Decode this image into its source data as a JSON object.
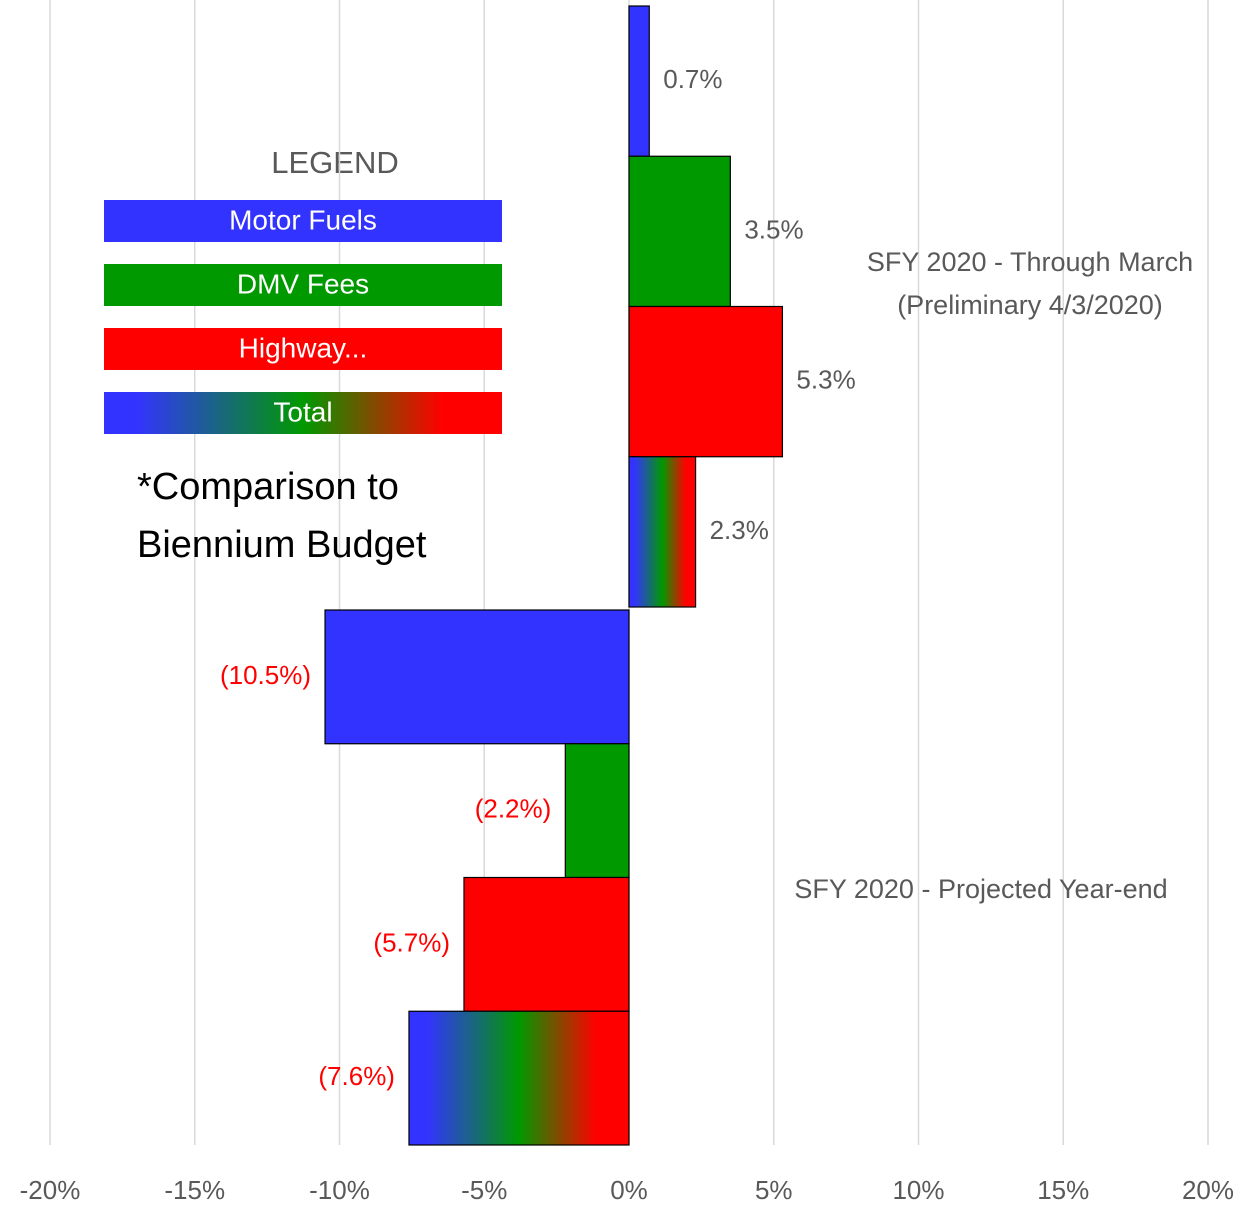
{
  "chart_data": {
    "type": "hbar",
    "categories": [
      "SFY 2020 - Through March (Preliminary 4/3/2020)",
      "SFY 2020 - Projected Year-end"
    ],
    "series": [
      {
        "name": "Motor Fuels",
        "color": "#3333ff",
        "values": [
          0.7,
          -10.5
        ],
        "value_labels": [
          "0.7%",
          "(10.5%)"
        ]
      },
      {
        "name": "DMV Fees",
        "color": "#009900",
        "values": [
          3.5,
          -2.2
        ],
        "value_labels": [
          "3.5%",
          "(2.2%)"
        ]
      },
      {
        "name": "Highway...",
        "color": "#ff0000",
        "values": [
          5.3,
          -5.7
        ],
        "value_labels": [
          "5.3%",
          "(5.7%)"
        ]
      },
      {
        "name": "Total",
        "color": [
          "#3333ff",
          "#009900",
          "#ff0000"
        ],
        "values": [
          2.3,
          -7.6
        ],
        "value_labels": [
          "2.3%",
          "(7.6%)"
        ]
      }
    ],
    "xlim": [
      -20,
      20
    ],
    "xticks": [
      {
        "value": -20,
        "label": "-20%"
      },
      {
        "value": -15,
        "label": "-15%"
      },
      {
        "value": -10,
        "label": "-10%"
      },
      {
        "value": -5,
        "label": "-5%"
      },
      {
        "value": 0,
        "label": "0%"
      },
      {
        "value": 5,
        "label": "5%"
      },
      {
        "value": 10,
        "label": "10%"
      },
      {
        "value": 15,
        "label": "15%"
      },
      {
        "value": 20,
        "label": "20%"
      }
    ],
    "grid": true,
    "legend_title": "LEGEND",
    "annotation": "*Comparison to Biennium Budget"
  }
}
